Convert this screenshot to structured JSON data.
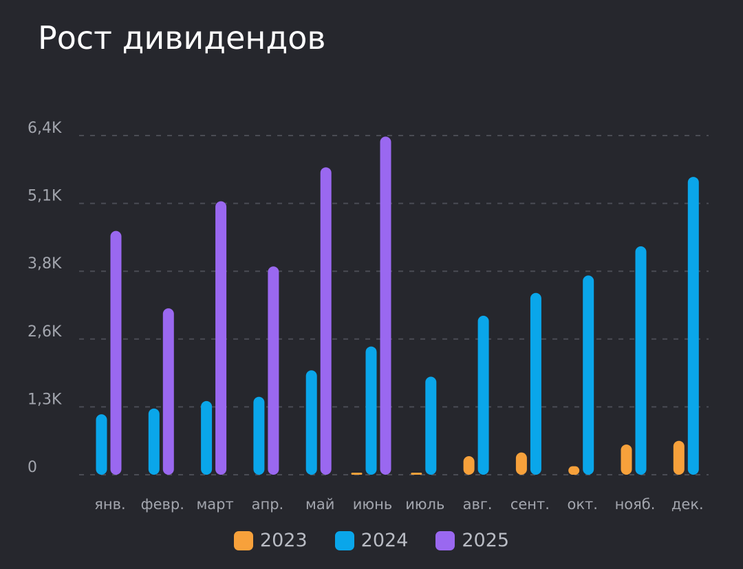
{
  "title": "Рост дивидендов",
  "colors": {
    "background": "#26272d",
    "grid": "#4a4c54",
    "tick": "#a3a6ae",
    "2023": "#f7a13b",
    "2024": "#0aa6ea",
    "2025": "#9a68f0"
  },
  "chart_data": {
    "type": "bar",
    "title": "Рост дивидендов",
    "categories": [
      "янв.",
      "февр.",
      "март",
      "апр.",
      "май",
      "июнь",
      "июль",
      "авг.",
      "сент.",
      "окт.",
      "нояб.",
      "дек."
    ],
    "y_ticks": [
      {
        "value": 0,
        "label": "0"
      },
      {
        "value": 1280,
        "label": "1,3K"
      },
      {
        "value": 2560,
        "label": "2,6K"
      },
      {
        "value": 3840,
        "label": "3,8K"
      },
      {
        "value": 5120,
        "label": "5,1K"
      },
      {
        "value": 6400,
        "label": "6,4K"
      }
    ],
    "ylim": [
      0,
      6400
    ],
    "grid": true,
    "legend_position": "bottom",
    "series": [
      {
        "name": "2023",
        "values": [
          0,
          0,
          0,
          0,
          0,
          20,
          20,
          350,
          420,
          160,
          570,
          640
        ]
      },
      {
        "name": "2024",
        "values": [
          1140,
          1250,
          1390,
          1470,
          1970,
          2420,
          1850,
          3000,
          3430,
          3760,
          4310,
          5620
        ]
      },
      {
        "name": "2025",
        "values": [
          4600,
          3140,
          5160,
          3930,
          5800,
          6380,
          0,
          0,
          0,
          0,
          0,
          0
        ]
      }
    ]
  }
}
